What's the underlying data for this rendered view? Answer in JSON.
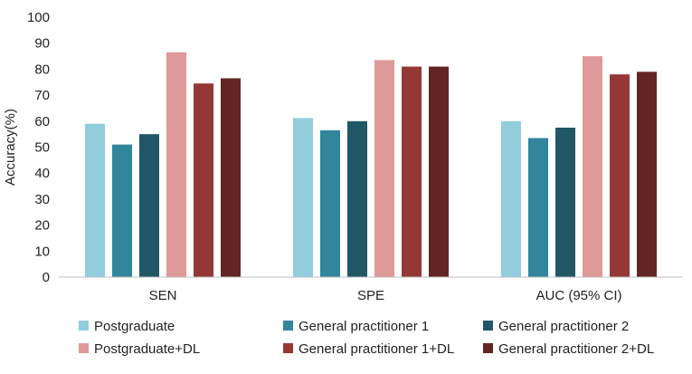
{
  "chart_data": {
    "type": "bar",
    "title": "",
    "xlabel": "",
    "ylabel": "Accuracy(%)",
    "ylim": [
      0,
      100
    ],
    "yticks": [
      0,
      10,
      20,
      30,
      40,
      50,
      60,
      70,
      80,
      90,
      100
    ],
    "grid": false,
    "legend_position": "bottom",
    "categories": [
      "SEN",
      "SPE",
      "AUC (95% CI)"
    ],
    "series": [
      {
        "name": "Postgraduate",
        "color": "#92cddc",
        "values": [
          59,
          61.2,
          60
        ]
      },
      {
        "name": "General practitioner 1",
        "color": "#31859c",
        "values": [
          51,
          56.5,
          53.5
        ]
      },
      {
        "name": "General practitioner 2",
        "color": "#215867",
        "values": [
          55,
          60,
          57.5
        ]
      },
      {
        "name": "Postgraduate+DL",
        "color": "#df9999",
        "values": [
          86.5,
          83.5,
          85
        ]
      },
      {
        "name": "General practitioner 1+DL",
        "color": "#953735",
        "values": [
          74.5,
          81,
          78
        ]
      },
      {
        "name": "General practitioner 2+DL",
        "color": "#632523",
        "values": [
          76.5,
          81,
          79
        ]
      }
    ]
  }
}
